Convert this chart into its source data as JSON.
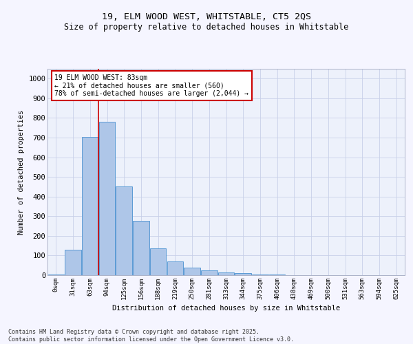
{
  "title_line1": "19, ELM WOOD WEST, WHITSTABLE, CT5 2QS",
  "title_line2": "Size of property relative to detached houses in Whitstable",
  "xlabel": "Distribution of detached houses by size in Whitstable",
  "ylabel": "Number of detached properties",
  "bar_labels": [
    "0sqm",
    "31sqm",
    "63sqm",
    "94sqm",
    "125sqm",
    "156sqm",
    "188sqm",
    "219sqm",
    "250sqm",
    "281sqm",
    "313sqm",
    "344sqm",
    "375sqm",
    "406sqm",
    "438sqm",
    "469sqm",
    "500sqm",
    "531sqm",
    "563sqm",
    "594sqm",
    "625sqm"
  ],
  "bar_values": [
    5,
    130,
    705,
    780,
    450,
    278,
    135,
    70,
    40,
    25,
    15,
    10,
    5,
    3,
    0,
    0,
    0,
    0,
    0,
    0,
    0
  ],
  "bar_color": "#aec6e8",
  "bar_edge_color": "#5b9bd5",
  "property_line_x": 2.5,
  "annotation_text": "19 ELM WOOD WEST: 83sqm\n← 21% of detached houses are smaller (560)\n78% of semi-detached houses are larger (2,044) →",
  "vline_color": "#cc0000",
  "ylim": [
    0,
    1050
  ],
  "yticks": [
    0,
    100,
    200,
    300,
    400,
    500,
    600,
    700,
    800,
    900,
    1000
  ],
  "footnote": "Contains HM Land Registry data © Crown copyright and database right 2025.\nContains public sector information licensed under the Open Government Licence v3.0.",
  "bg_color": "#edf1fb",
  "grid_color": "#c8d0e8",
  "fig_bg_color": "#f5f5ff"
}
